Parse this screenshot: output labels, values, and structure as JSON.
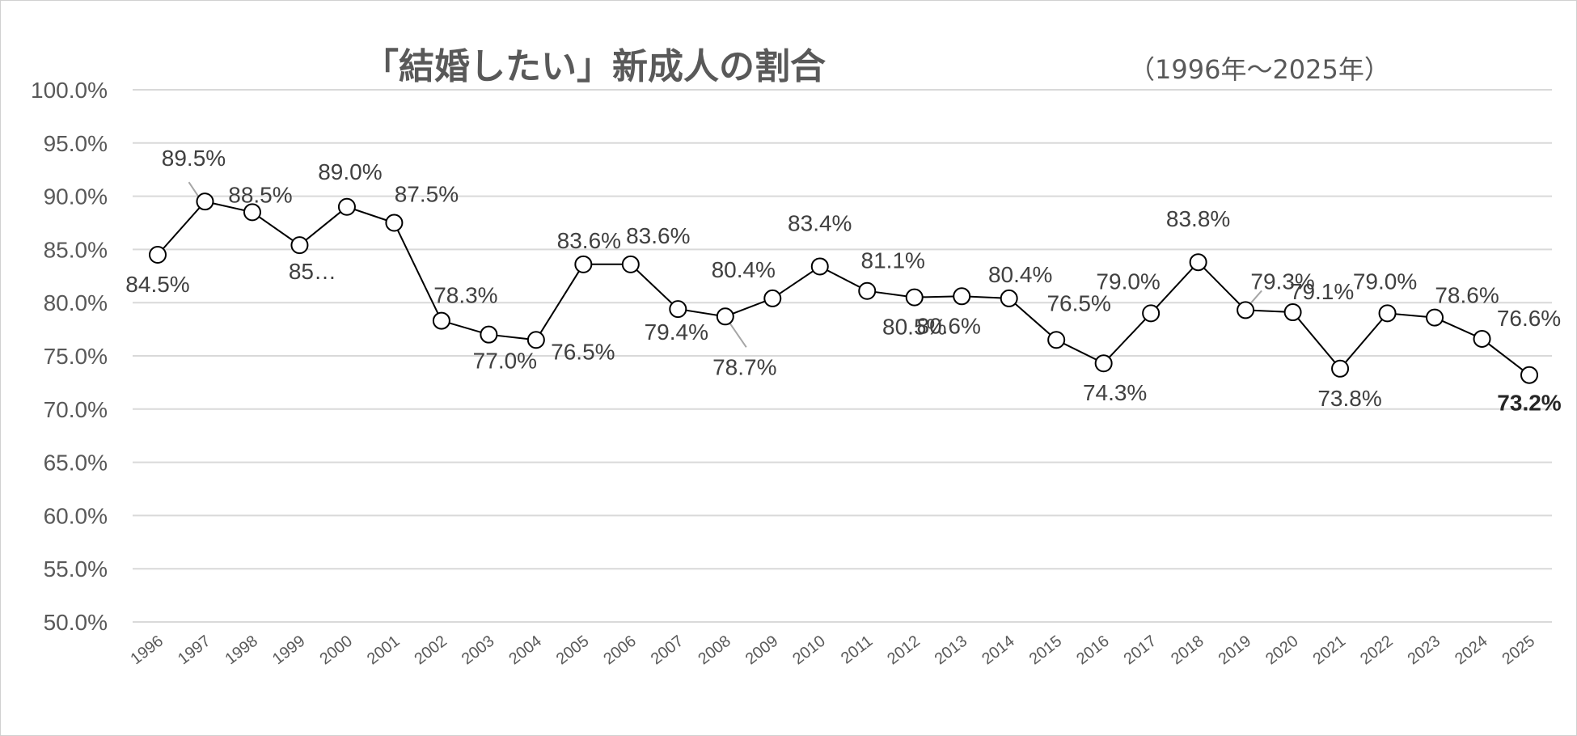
{
  "chart_data": {
    "type": "line",
    "title": "「結婚したい」新成人の割合",
    "subtitle": "（1996年～2025年）",
    "xlabel": "",
    "ylabel": "",
    "ylim": [
      50,
      100
    ],
    "y_ticks": [
      "100.0%",
      "95.0%",
      "90.0%",
      "85.0%",
      "80.0%",
      "75.0%",
      "70.0%",
      "65.0%",
      "60.0%",
      "55.0%",
      "50.0%"
    ],
    "grid": true,
    "legend": "none",
    "categories": [
      "1996",
      "1997",
      "1998",
      "1999",
      "2000",
      "2001",
      "2002",
      "2003",
      "2004",
      "2005",
      "2006",
      "2007",
      "2008",
      "2009",
      "2010",
      "2011",
      "2012",
      "2013",
      "2014",
      "2015",
      "2016",
      "2017",
      "2018",
      "2019",
      "2020",
      "2021",
      "2022",
      "2023",
      "2024",
      "2025"
    ],
    "series": [
      {
        "values": [
          84.5,
          89.5,
          88.5,
          85.4,
          89.0,
          87.5,
          78.3,
          77.0,
          76.5,
          83.6,
          83.6,
          79.4,
          78.7,
          80.4,
          83.4,
          81.1,
          80.5,
          80.6,
          80.4,
          76.5,
          74.3,
          79.0,
          83.8,
          79.3,
          79.1,
          73.8,
          79.0,
          78.6,
          76.6,
          73.2
        ],
        "labels": [
          "84.5%",
          "89.5%",
          "88.5%",
          "85…",
          "89.0%",
          "87.5%",
          "78.3%",
          "77.0%",
          "76.5%",
          "83.6%",
          "83.6%",
          "79.4%",
          "78.7%",
          "80.4%",
          "83.4%",
          "81.1%",
          "80.5%",
          "80.6%",
          "80.4%",
          "76.5%",
          "74.3%",
          "79.0%",
          "83.8%",
          "79.3%",
          "79.1%",
          "73.8%",
          "79.0%",
          "78.6%",
          "76.6%",
          "73.2%"
        ]
      }
    ]
  },
  "colors": {
    "line": "#000000",
    "marker_fill": "#ffffff",
    "grid": "#d9d9d9",
    "text": "#595959"
  }
}
